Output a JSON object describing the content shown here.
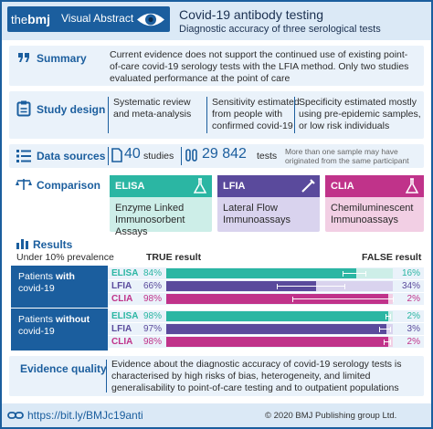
{
  "header": {
    "logo": "thebmj",
    "logo_the": "the",
    "logo_bmj": "bmj",
    "badge": "Visual Abstract",
    "title": "Covid-19 antibody testing",
    "subtitle": "Diagnostic accuracy of three serological tests"
  },
  "summary": {
    "label": "Summary",
    "text": "Current evidence does not support the continued use of existing point-of-care covid-19 serology tests with the LFIA method. Only two studies evaluated performance at the point of care"
  },
  "study_design": {
    "label": "Study design",
    "col1": "Systematic review and meta-analysis",
    "col2": "Sensitivity estimated from people with confirmed covid-19",
    "col3": "Specificity estimated mostly using pre-epidemic samples, or low risk individuals"
  },
  "data_sources": {
    "label": "Data sources",
    "studies_n": "40",
    "studies_label": "studies",
    "tests_n": "29 842",
    "tests_label": "tests",
    "note": "More than one sample may have originated from the same participant"
  },
  "comparison": {
    "label": "Comparison",
    "cards": [
      {
        "abbr": "ELISA",
        "full": "Enzyme Linked Immunosorbent Assays",
        "color": "#2bb6a3",
        "light": "#cdeee8"
      },
      {
        "abbr": "LFIA",
        "full": "Lateral Flow Immunoassays",
        "color": "#5a4a9c",
        "light": "#d9d3ee"
      },
      {
        "abbr": "CLIA",
        "full": "Chemiluminescent Immunoassays",
        "color": "#c0338a",
        "light": "#f2cfe4"
      }
    ]
  },
  "results": {
    "label": "Results",
    "prevalence": "Under 10% prevalence",
    "true_label": "TRUE result",
    "false_label": "FALSE result",
    "groups": [
      {
        "name_pre": "Patients ",
        "name_bold": "with",
        "name_post": "covid-19",
        "rows": [
          {
            "test": "ELISA",
            "true_pct": "84%",
            "false_pct": "16%",
            "value": 84,
            "ci": [
              78,
              88
            ]
          },
          {
            "test": "LFIA",
            "true_pct": "66%",
            "false_pct": "34%",
            "value": 66,
            "ci": [
              49,
              79
            ]
          },
          {
            "test": "CLIA",
            "true_pct": "98%",
            "false_pct": "2%",
            "value": 98,
            "ci": [
              56,
              100
            ]
          }
        ]
      },
      {
        "name_pre": "Patients ",
        "name_bold": "without",
        "name_post": "covid-19",
        "rows": [
          {
            "test": "ELISA",
            "true_pct": "98%",
            "false_pct": "2%",
            "value": 98,
            "ci": [
              97,
              99
            ]
          },
          {
            "test": "LFIA",
            "true_pct": "97%",
            "false_pct": "3%",
            "value": 97,
            "ci": [
              94,
              99
            ]
          },
          {
            "test": "CLIA",
            "true_pct": "98%",
            "false_pct": "2%",
            "value": 98,
            "ci": [
              96,
              99
            ]
          }
        ]
      }
    ]
  },
  "evidence": {
    "label": "Evidence quality",
    "text": "Evidence about the diagnostic accuracy of covid-19 serology tests is characterised by high risks of bias, heterogeneity, and limited generalisability to point-of-care testing and to outpatient populations"
  },
  "footer": {
    "link": "https://bit.ly/BMJc19anti",
    "copyright": "© 2020 BMJ Publishing group Ltd."
  },
  "colors": {
    "primary": "#1b5e9e",
    "panel": "#eaf2fa",
    "header_bg": "#dbe9f6"
  }
}
